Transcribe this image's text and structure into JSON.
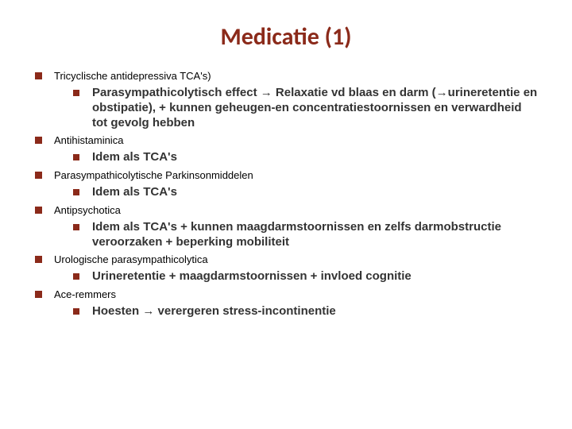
{
  "colors": {
    "title": "#8b2a1a",
    "bullet": "#8b2a1a",
    "text_lvl1": "#000000",
    "text_lvl2": "#333333",
    "background": "#ffffff"
  },
  "typography": {
    "title_fontsize": 30,
    "lvl1_fontsize": 13,
    "lvl2_fontsize": 15,
    "lvl2_fontweight": "bold",
    "lvl1_fontweight": "normal"
  },
  "title": "Medicatie (1)",
  "items": [
    {
      "text": "Tricyclische antidepressiva TCA's)",
      "sub": [
        {
          "text": "Parasympathicolytisch effect → Relaxatie vd blaas en darm (→urineretentie en obstipatie), + kunnen geheugen-en concentratiestoornissen en verwardheid tot gevolg hebben"
        }
      ]
    },
    {
      "text": "Antihistaminica",
      "sub": [
        {
          "text": "Idem als TCA's"
        }
      ]
    },
    {
      "text": "Parasympathicolytische Parkinsonmiddelen",
      "sub": [
        {
          "text": "Idem als TCA's"
        }
      ]
    },
    {
      "text": "Antipsychotica",
      "sub": [
        {
          "text": "Idem als TCA's + kunnen maagdarmstoornissen en zelfs darmobstructie veroorzaken + beperking mobiliteit"
        }
      ]
    },
    {
      "text": "Urologische parasympathicolytica",
      "sub": [
        {
          "text": "Urineretentie + maagdarmstoornissen + invloed cognitie"
        }
      ]
    },
    {
      "text": "Ace-remmers",
      "sub": [
        {
          "text": "Hoesten → verergeren stress-incontinentie"
        }
      ]
    }
  ]
}
